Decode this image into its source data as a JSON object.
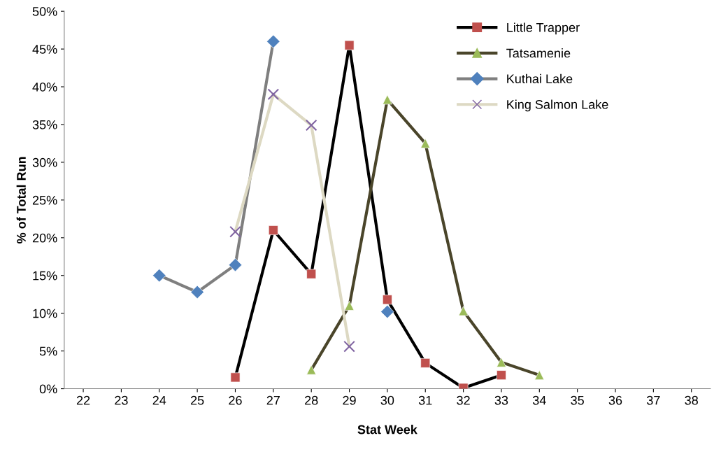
{
  "chart_data": {
    "type": "line",
    "xlabel": "Stat Week",
    "ylabel": "% of Total Run",
    "categories": [
      "22",
      "23",
      "24",
      "25",
      "26",
      "27",
      "28",
      "29",
      "30",
      "31",
      "32",
      "33",
      "34",
      "35",
      "36",
      "37",
      "38"
    ],
    "ylim": [
      0,
      50
    ],
    "yticks": [
      {
        "value": 0,
        "label": "0%"
      },
      {
        "value": 5,
        "label": "5%"
      },
      {
        "value": 10,
        "label": "10%"
      },
      {
        "value": 15,
        "label": "15%"
      },
      {
        "value": 20,
        "label": "20%"
      },
      {
        "value": 25,
        "label": "25%"
      },
      {
        "value": 30,
        "label": "30%"
      },
      {
        "value": 35,
        "label": "35%"
      },
      {
        "value": 40,
        "label": "40%"
      },
      {
        "value": 45,
        "label": "45%"
      },
      {
        "value": 50,
        "label": "50%"
      }
    ],
    "grid": false,
    "legend": "top right",
    "line_style": "solid",
    "series": [
      {
        "name": "Little Trapper",
        "color": "#000000",
        "marker": "square",
        "colors": [
          "#c0504d",
          "#c0504d",
          "#c0504d",
          "#c0504d",
          "#c0504d",
          "#c0504d",
          "#c0504d",
          "#c0504d",
          "#c0504d",
          "#c0504d",
          "#c0504d",
          "#c0504d",
          "#c0504d",
          "#c0504d",
          "#c0504d",
          "#c0504d",
          "#c0504d"
        ],
        "values": [
          null,
          null,
          null,
          null,
          1.5,
          21,
          15.2,
          45.5,
          11.8,
          3.4,
          0.1,
          1.8,
          null,
          null,
          null,
          null,
          null
        ]
      },
      {
        "name": "Tatsamenie",
        "color": "#4a452a",
        "marker": "triangle",
        "colors": [
          "#9bbb59",
          "#9bbb59",
          "#9bbb59",
          "#9bbb59",
          "#9bbb59",
          "#9bbb59",
          "#9bbb59",
          "#9bbb59",
          "#9bbb59",
          "#9bbb59",
          "#9bbb59",
          "#9bbb59",
          "#9bbb59",
          "#9bbb59",
          "#9bbb59",
          "#9bbb59",
          "#9bbb59"
        ],
        "values": [
          null,
          null,
          null,
          null,
          null,
          null,
          2.5,
          11,
          38.3,
          32.5,
          10.3,
          3.5,
          1.8,
          null,
          null,
          null,
          null
        ]
      },
      {
        "name": "Kuthai Lake",
        "color": "#7f7f7f",
        "marker": "diamond",
        "colors": [
          "#4f81bd",
          "#4f81bd",
          "#4f81bd",
          "#4f81bd",
          "#4f81bd",
          "#4f81bd",
          "#4f81bd",
          "#4f81bd",
          "#4f81bd",
          "#4f81bd",
          "#4f81bd",
          "#4f81bd",
          "#4f81bd",
          "#4f81bd",
          "#4f81bd",
          "#4f81bd",
          "#4f81bd"
        ],
        "values": [
          null,
          null,
          15,
          12.8,
          16.4,
          46,
          null,
          null,
          10.2,
          null,
          null,
          null,
          null,
          null,
          null,
          null,
          null
        ]
      },
      {
        "name": "King Salmon Lake",
        "color": "#ddd9c3",
        "marker": "cross",
        "colors": [
          "#8064a2",
          "#8064a2",
          "#8064a2",
          "#8064a2",
          "#8064a2",
          "#8064a2",
          "#8064a2",
          "#8064a2",
          "#8064a2",
          "#8064a2",
          "#8064a2",
          "#8064a2",
          "#8064a2",
          "#8064a2",
          "#8064a2",
          "#8064a2",
          "#8064a2"
        ],
        "values": [
          null,
          null,
          null,
          null,
          20.8,
          39,
          34.9,
          5.6,
          null,
          null,
          null,
          null,
          null,
          null,
          null,
          null,
          null
        ]
      }
    ]
  }
}
